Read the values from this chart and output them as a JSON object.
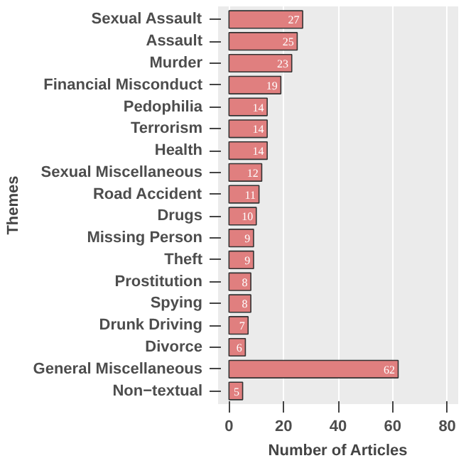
{
  "chart_data": {
    "type": "bar",
    "orientation": "horizontal",
    "xlabel": "Number of Articles",
    "ylabel": "Themes",
    "categories": [
      "Sexual Assault",
      "Assault",
      "Murder",
      "Financial Misconduct",
      "Pedophilia",
      "Terrorism",
      "Health",
      "Sexual Miscellaneous",
      "Road Accident",
      "Drugs",
      "Missing Person",
      "Theft",
      "Prostitution",
      "Spying",
      "Drunk Driving",
      "Divorce",
      "General Miscellaneous",
      "Non−textual"
    ],
    "values": [
      27,
      25,
      23,
      19,
      14,
      14,
      14,
      12,
      11,
      10,
      9,
      9,
      8,
      8,
      7,
      6,
      62,
      5
    ],
    "color": "#e07f7f",
    "xlim": [
      -4,
      84
    ],
    "xticks": [
      0,
      20,
      40,
      60,
      80
    ],
    "grid": "x",
    "data_labels": true
  }
}
